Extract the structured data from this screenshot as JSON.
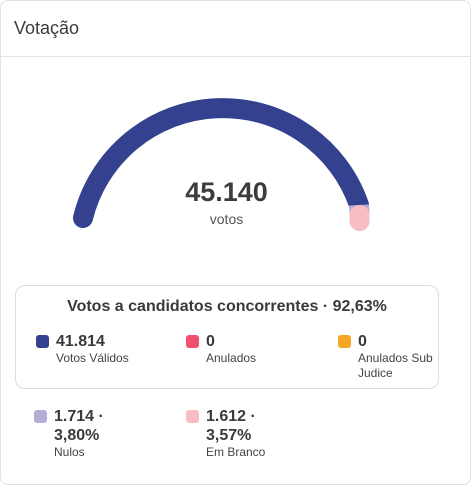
{
  "card": {
    "title": "Votação"
  },
  "gauge": {
    "total": "45.140",
    "unit": "votos",
    "colors": {
      "validos": "#33418e",
      "nulos": "#b4aed6",
      "brancos": "#f7bcc4"
    }
  },
  "concorrentes": {
    "title": "Votos a candidatos concorrentes · 92,63%",
    "items": [
      {
        "value": "41.814",
        "label": "Votos Válidos",
        "color": "#33418e"
      },
      {
        "value": "0",
        "label": "Anulados",
        "color": "#f0506e"
      },
      {
        "value": "0",
        "label": "Anulados Sub Judice",
        "label_line1": "Anulados Sub",
        "label_line2": "Judice",
        "color": "#f5a623"
      }
    ]
  },
  "outros": [
    {
      "value_line1": "1.714 ·",
      "value_line2": "3,80%",
      "label": "Nulos",
      "color": "#b4aed6"
    },
    {
      "value_line1": "1.612 ·",
      "value_line2": "3,57%",
      "label": "Em Branco",
      "color": "#f7bcc4"
    }
  ]
}
